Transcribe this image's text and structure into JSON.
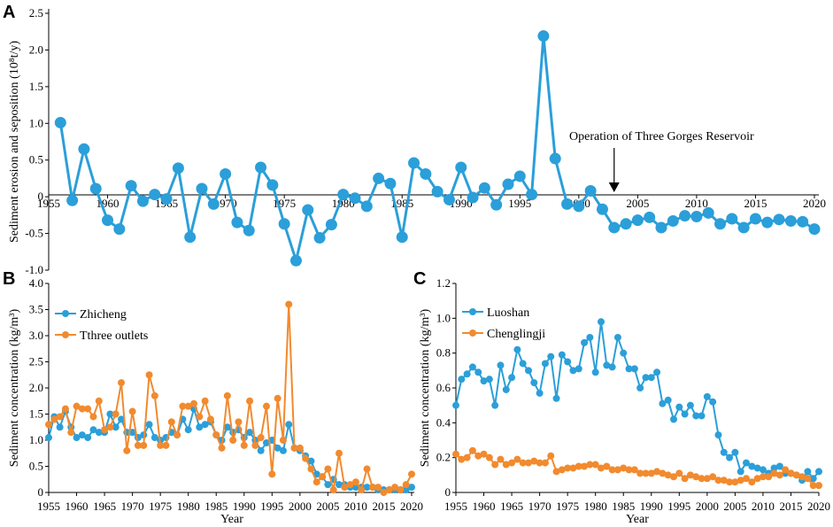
{
  "colors": {
    "blue": "#2B9FD9",
    "orange": "#F28A2E",
    "axis": "#000000"
  },
  "chart_data": [
    {
      "id": "A",
      "type": "line",
      "panel_label": "A",
      "ylabel": "Sediment erosion and seposition (10⁸t/y)",
      "xlabel": "",
      "xlim": [
        1955,
        2020
      ],
      "ylim": [
        -1.0,
        2.5
      ],
      "x_ticks": [
        1955,
        1960,
        1965,
        1970,
        1975,
        1980,
        1985,
        1990,
        1995,
        2000,
        2005,
        2010,
        2015,
        2020
      ],
      "y_ticks": [
        -1.0,
        -0.5,
        0,
        0.5,
        1.0,
        1.5,
        2.0,
        2.5
      ],
      "y_tick_labels": [
        "-1.0",
        "-0.5",
        "0",
        "0.5",
        "1.0",
        "1.5",
        "2.0",
        "2.5"
      ],
      "annotation": {
        "text": "Operation of Three Gorges Reservoir",
        "x": 2003
      },
      "series": [
        {
          "name": "Sediment erosion and deposition",
          "color": "blue",
          "x": [
            1956,
            1957,
            1958,
            1959,
            1960,
            1961,
            1962,
            1963,
            1964,
            1965,
            1966,
            1967,
            1968,
            1969,
            1970,
            1971,
            1972,
            1973,
            1974,
            1975,
            1976,
            1977,
            1978,
            1979,
            1980,
            1981,
            1982,
            1983,
            1984,
            1985,
            1986,
            1987,
            1988,
            1989,
            1990,
            1991,
            1992,
            1993,
            1994,
            1995,
            1996,
            1997,
            1998,
            1999,
            2000,
            2001,
            2002,
            2003,
            2004,
            2005,
            2006,
            2007,
            2008,
            2009,
            2010,
            2011,
            2012,
            2013,
            2014,
            2015,
            2016,
            2017,
            2018,
            2019,
            2020
          ],
          "values": [
            1.01,
            -0.05,
            0.65,
            0.11,
            -0.32,
            -0.44,
            0.15,
            -0.06,
            0.03,
            -0.03,
            0.39,
            -0.55,
            0.11,
            -0.1,
            0.31,
            -0.35,
            -0.46,
            0.4,
            0.16,
            -0.37,
            -0.87,
            -0.18,
            -0.56,
            -0.38,
            0.03,
            -0.02,
            -0.13,
            0.25,
            0.18,
            -0.55,
            0.46,
            0.31,
            0.07,
            -0.04,
            0.4,
            -0.01,
            0.12,
            -0.11,
            0.17,
            0.28,
            0.03,
            2.19,
            0.52,
            -0.1,
            -0.13,
            0.08,
            -0.17,
            -0.42,
            -0.37,
            -0.32,
            -0.28,
            -0.42,
            -0.33,
            -0.26,
            -0.27,
            -0.22,
            -0.37,
            -0.3,
            -0.42,
            -0.3,
            -0.35,
            -0.31,
            -0.33,
            -0.34,
            -0.44
          ]
        }
      ]
    },
    {
      "id": "B",
      "type": "line",
      "panel_label": "B",
      "ylabel": "Sediment concentration (kg/m³)",
      "xlabel": "Year",
      "xlim": [
        1955,
        2020
      ],
      "ylim": [
        0,
        4.0
      ],
      "x_ticks": [
        1955,
        1960,
        1965,
        1970,
        1975,
        1980,
        1985,
        1990,
        1995,
        2000,
        2005,
        2010,
        2015,
        2020
      ],
      "y_ticks": [
        0,
        0.5,
        1.0,
        1.5,
        2.0,
        2.5,
        3.0,
        3.5,
        4.0
      ],
      "y_tick_labels": [
        "0",
        "0.5",
        "1.0",
        "1.5",
        "2.0",
        "2.5",
        "3.0",
        "3.5",
        "4.0"
      ],
      "legend_position": "top-left",
      "series": [
        {
          "name": "Zhicheng",
          "color": "blue",
          "x": [
            1955,
            1956,
            1957,
            1958,
            1959,
            1960,
            1961,
            1962,
            1963,
            1964,
            1965,
            1966,
            1967,
            1968,
            1969,
            1970,
            1971,
            1972,
            1973,
            1974,
            1975,
            1976,
            1977,
            1978,
            1979,
            1980,
            1981,
            1982,
            1983,
            1984,
            1985,
            1986,
            1987,
            1988,
            1989,
            1990,
            1991,
            1992,
            1993,
            1994,
            1995,
            1996,
            1997,
            1998,
            1999,
            2000,
            2001,
            2002,
            2003,
            2004,
            2005,
            2006,
            2007,
            2008,
            2009,
            2010,
            2011,
            2012,
            2013,
            2014,
            2015,
            2016,
            2017,
            2018,
            2019,
            2020
          ],
          "values": [
            1.05,
            1.45,
            1.25,
            1.55,
            1.25,
            1.05,
            1.1,
            1.05,
            1.2,
            1.15,
            1.15,
            1.5,
            1.25,
            1.4,
            1.15,
            1.15,
            1.05,
            1.1,
            1.3,
            1.05,
            1.0,
            1.05,
            1.15,
            1.1,
            1.4,
            1.2,
            1.6,
            1.25,
            1.3,
            1.35,
            1.1,
            1.0,
            1.25,
            1.15,
            1.2,
            1.05,
            1.15,
            1.0,
            0.8,
            0.95,
            1.0,
            0.85,
            0.8,
            1.3,
            0.85,
            0.8,
            0.7,
            0.6,
            0.35,
            0.3,
            0.15,
            0.25,
            0.15,
            0.15,
            0.1,
            0.1,
            0.1,
            0.1,
            0.1,
            0.05,
            0.05,
            0.05,
            0.05,
            0.05,
            0.05,
            0.1
          ]
        },
        {
          "name": "Tthree outlets",
          "color": "orange",
          "x": [
            1955,
            1956,
            1957,
            1958,
            1959,
            1960,
            1961,
            1962,
            1963,
            1964,
            1965,
            1966,
            1967,
            1968,
            1969,
            1970,
            1971,
            1972,
            1973,
            1974,
            1975,
            1976,
            1977,
            1978,
            1979,
            1980,
            1981,
            1982,
            1983,
            1984,
            1985,
            1986,
            1987,
            1988,
            1989,
            1990,
            1991,
            1992,
            1993,
            1994,
            1995,
            1996,
            1997,
            1998,
            1999,
            2000,
            2001,
            2002,
            2003,
            2004,
            2005,
            2006,
            2007,
            2008,
            2009,
            2010,
            2011,
            2012,
            2013,
            2014,
            2015,
            2016,
            2017,
            2018,
            2019,
            2020
          ],
          "values": [
            1.3,
            1.4,
            1.45,
            1.6,
            1.15,
            1.65,
            1.6,
            1.6,
            1.45,
            1.75,
            1.2,
            1.25,
            1.5,
            2.1,
            0.8,
            1.55,
            0.9,
            0.9,
            2.25,
            1.85,
            0.9,
            0.9,
            1.35,
            1.1,
            1.65,
            1.65,
            1.7,
            1.45,
            1.75,
            1.4,
            1.1,
            0.85,
            1.85,
            1.0,
            1.35,
            0.9,
            1.75,
            0.9,
            1.05,
            1.65,
            0.35,
            1.8,
            1.0,
            3.6,
            0.85,
            0.85,
            0.65,
            0.45,
            0.2,
            0.3,
            0.45,
            0.05,
            0.75,
            0.1,
            0.15,
            0.2,
            0.05,
            0.45,
            0.1,
            0.1,
            0.0,
            0.05,
            0.1,
            0.05,
            0.15,
            0.35
          ]
        }
      ]
    },
    {
      "id": "C",
      "type": "line",
      "panel_label": "C",
      "ylabel": "Sediment concentration (kg/m³)",
      "xlabel": "Year",
      "xlim": [
        1955,
        2020
      ],
      "ylim": [
        0,
        1.2
      ],
      "x_ticks": [
        1955,
        1960,
        1965,
        1970,
        1975,
        1980,
        1985,
        1990,
        1995,
        2000,
        2005,
        2010,
        2015,
        2020
      ],
      "y_ticks": [
        0,
        0.2,
        0.4,
        0.6,
        0.8,
        1.0,
        1.2
      ],
      "y_tick_labels": [
        "0",
        "0.2",
        "0.4",
        "0.6",
        "0.8",
        "1.0",
        "1.2"
      ],
      "legend_position": "top-left",
      "series": [
        {
          "name": "Luoshan",
          "color": "blue",
          "x": [
            1955,
            1956,
            1957,
            1958,
            1959,
            1960,
            1961,
            1962,
            1963,
            1964,
            1965,
            1966,
            1967,
            1968,
            1969,
            1970,
            1971,
            1972,
            1973,
            1974,
            1975,
            1976,
            1977,
            1978,
            1979,
            1980,
            1981,
            1982,
            1983,
            1984,
            1985,
            1986,
            1987,
            1988,
            1989,
            1990,
            1991,
            1992,
            1993,
            1994,
            1995,
            1996,
            1997,
            1998,
            1999,
            2000,
            2001,
            2002,
            2003,
            2004,
            2005,
            2006,
            2007,
            2008,
            2009,
            2010,
            2011,
            2012,
            2013,
            2014,
            2015,
            2016,
            2017,
            2018,
            2019,
            2020
          ],
          "values": [
            0.5,
            0.65,
            0.68,
            0.72,
            0.69,
            0.64,
            0.65,
            0.5,
            0.73,
            0.59,
            0.66,
            0.82,
            0.74,
            0.7,
            0.63,
            0.57,
            0.74,
            0.78,
            0.54,
            0.79,
            0.75,
            0.7,
            0.71,
            0.86,
            0.89,
            0.69,
            0.98,
            0.73,
            0.72,
            0.89,
            0.8,
            0.71,
            0.71,
            0.6,
            0.66,
            0.66,
            0.69,
            0.51,
            0.53,
            0.42,
            0.49,
            0.45,
            0.5,
            0.44,
            0.44,
            0.55,
            0.52,
            0.33,
            0.23,
            0.2,
            0.23,
            0.12,
            0.17,
            0.15,
            0.14,
            0.13,
            0.11,
            0.14,
            0.15,
            0.11,
            0.11,
            0.1,
            0.07,
            0.12,
            0.08,
            0.12
          ]
        },
        {
          "name": "Chenglingji",
          "color": "orange",
          "x": [
            1955,
            1956,
            1957,
            1958,
            1959,
            1960,
            1961,
            1962,
            1963,
            1964,
            1965,
            1966,
            1967,
            1968,
            1969,
            1970,
            1971,
            1972,
            1973,
            1974,
            1975,
            1976,
            1977,
            1978,
            1979,
            1980,
            1981,
            1982,
            1983,
            1984,
            1985,
            1986,
            1987,
            1988,
            1989,
            1990,
            1991,
            1992,
            1993,
            1994,
            1995,
            1996,
            1997,
            1998,
            1999,
            2000,
            2001,
            2002,
            2003,
            2004,
            2005,
            2006,
            2007,
            2008,
            2009,
            2010,
            2011,
            2012,
            2013,
            2014,
            2015,
            2016,
            2017,
            2018,
            2019,
            2020
          ],
          "values": [
            0.22,
            0.19,
            0.2,
            0.24,
            0.21,
            0.22,
            0.2,
            0.16,
            0.19,
            0.16,
            0.17,
            0.19,
            0.17,
            0.17,
            0.18,
            0.17,
            0.17,
            0.21,
            0.12,
            0.13,
            0.14,
            0.14,
            0.15,
            0.15,
            0.16,
            0.16,
            0.14,
            0.15,
            0.13,
            0.13,
            0.14,
            0.13,
            0.13,
            0.11,
            0.11,
            0.11,
            0.12,
            0.11,
            0.1,
            0.09,
            0.11,
            0.08,
            0.1,
            0.09,
            0.08,
            0.08,
            0.09,
            0.07,
            0.07,
            0.06,
            0.06,
            0.07,
            0.08,
            0.06,
            0.08,
            0.09,
            0.09,
            0.11,
            0.1,
            0.13,
            0.11,
            0.1,
            0.09,
            0.08,
            0.04,
            0.04
          ]
        }
      ]
    }
  ]
}
